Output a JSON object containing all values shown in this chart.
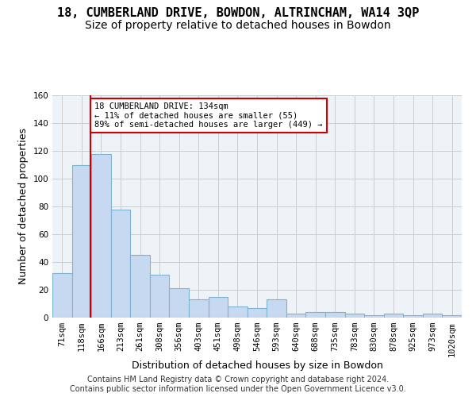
{
  "title": "18, CUMBERLAND DRIVE, BOWDON, ALTRINCHAM, WA14 3QP",
  "subtitle": "Size of property relative to detached houses in Bowdon",
  "xlabel": "Distribution of detached houses by size in Bowdon",
  "ylabel": "Number of detached properties",
  "categories": [
    "71sqm",
    "118sqm",
    "166sqm",
    "213sqm",
    "261sqm",
    "308sqm",
    "356sqm",
    "403sqm",
    "451sqm",
    "498sqm",
    "546sqm",
    "593sqm",
    "640sqm",
    "688sqm",
    "735sqm",
    "783sqm",
    "830sqm",
    "878sqm",
    "925sqm",
    "973sqm",
    "1020sqm"
  ],
  "bar_heights": [
    32,
    110,
    118,
    78,
    45,
    31,
    21,
    13,
    15,
    8,
    7,
    13,
    3,
    4,
    4,
    3,
    2,
    3,
    2,
    3,
    2
  ],
  "bar_color": "#c6d9f0",
  "bar_edgecolor": "#7fb3d3",
  "annotation_text": "18 CUMBERLAND DRIVE: 134sqm\n← 11% of detached houses are smaller (55)\n89% of semi-detached houses are larger (449) →",
  "annotation_box_color": "#ffffff",
  "annotation_box_edgecolor": "#cc0000",
  "vline_color": "#cc0000",
  "ylim": [
    0,
    160
  ],
  "yticks": [
    0,
    20,
    40,
    60,
    80,
    100,
    120,
    140,
    160
  ],
  "grid_color": "#cccccc",
  "bg_color": "#eef3f8",
  "footer": "Contains HM Land Registry data © Crown copyright and database right 2024.\nContains public sector information licensed under the Open Government Licence v3.0.",
  "title_fontsize": 11,
  "subtitle_fontsize": 10,
  "xlabel_fontsize": 9,
  "ylabel_fontsize": 9,
  "tick_fontsize": 7.5,
  "footer_fontsize": 7
}
